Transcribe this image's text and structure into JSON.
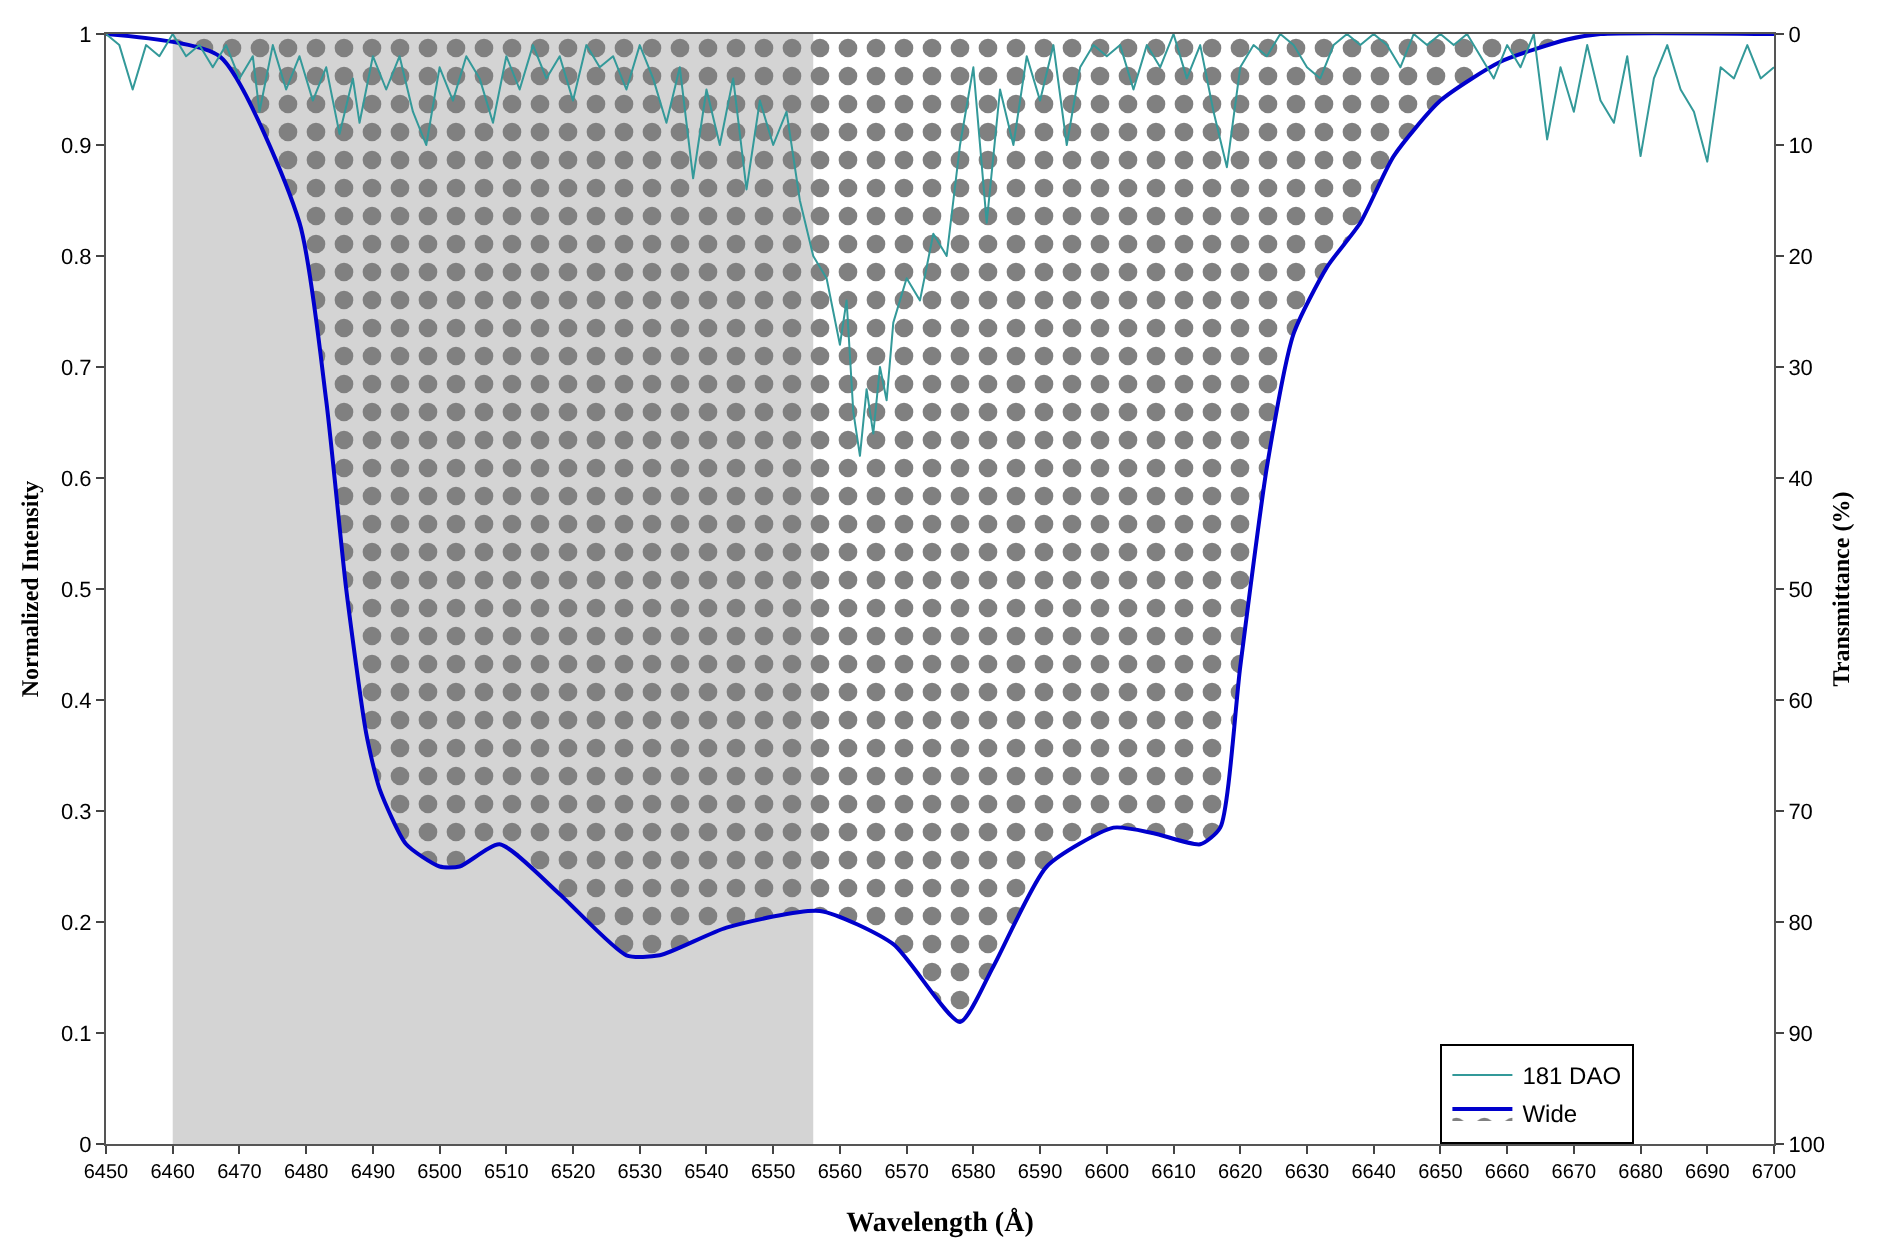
{
  "chart_data": {
    "type": "line",
    "xlabel": "Wavelength (Å)",
    "ylabel": "Normalized Intensity",
    "y2label": "Transmittance (%)",
    "xlim": [
      6450,
      6700
    ],
    "xticks": [
      6450,
      6460,
      6470,
      6480,
      6490,
      6500,
      6510,
      6520,
      6530,
      6540,
      6550,
      6560,
      6570,
      6580,
      6590,
      6600,
      6610,
      6620,
      6630,
      6640,
      6650,
      6660,
      6670,
      6680,
      6690,
      6700
    ],
    "ylim": [
      0,
      1
    ],
    "yticks": [
      0,
      0.1,
      0.2,
      0.3,
      0.4,
      0.5,
      0.6,
      0.7,
      0.8,
      0.9,
      1
    ],
    "y2lim": [
      100,
      0
    ],
    "y2ticks": [
      0,
      10,
      20,
      30,
      40,
      50,
      60,
      70,
      80,
      90,
      100
    ],
    "grid": false,
    "legend": "bottom right",
    "bands": [
      {
        "axis": "x",
        "from": 6460,
        "to": 6556,
        "color": "#d4d4d4"
      }
    ],
    "series": [
      {
        "name": "181 DAO",
        "color": "#339999",
        "x": [
          6450,
          6452,
          6454,
          6456,
          6458,
          6460,
          6462,
          6464,
          6466,
          6468,
          6470,
          6472,
          6473,
          6475,
          6477,
          6479,
          6481,
          6483,
          6485,
          6487,
          6488,
          6490,
          6492,
          6494,
          6496,
          6498,
          6500,
          6502,
          6504,
          6506,
          6508,
          6510,
          6512,
          6514,
          6516,
          6518,
          6520,
          6522,
          6524,
          6526,
          6528,
          6530,
          6532,
          6534,
          6536,
          6538,
          6540,
          6542,
          6544,
          6546,
          6548,
          6550,
          6552,
          6554,
          6556,
          6558,
          6560,
          6561,
          6562,
          6563,
          6564,
          6565,
          6566,
          6567,
          6568,
          6570,
          6572,
          6574,
          6576,
          6578,
          6580,
          6582,
          6584,
          6586,
          6588,
          6590,
          6592,
          6594,
          6596,
          6598,
          6600,
          6602,
          6604,
          6606,
          6608,
          6610,
          6612,
          6614,
          6616,
          6618,
          6620,
          6622,
          6624,
          6626,
          6628,
          6630,
          6632,
          6634,
          6636,
          6638,
          6640,
          6642,
          6644,
          6646,
          6648,
          6650,
          6652,
          6654,
          6656,
          6658,
          6660,
          6662,
          6664,
          6666,
          6668,
          6670,
          6672,
          6674,
          6676,
          6678,
          6680,
          6682,
          6684,
          6686,
          6688,
          6690,
          6692,
          6694,
          6696,
          6698,
          6700
        ],
        "values": [
          1.0,
          0.99,
          0.95,
          0.99,
          0.98,
          1.0,
          0.98,
          0.99,
          0.97,
          0.99,
          0.96,
          0.98,
          0.93,
          0.99,
          0.95,
          0.98,
          0.94,
          0.97,
          0.91,
          0.96,
          0.92,
          0.98,
          0.95,
          0.98,
          0.93,
          0.9,
          0.97,
          0.94,
          0.98,
          0.96,
          0.92,
          0.98,
          0.95,
          0.99,
          0.96,
          0.98,
          0.94,
          0.99,
          0.97,
          0.98,
          0.95,
          0.99,
          0.96,
          0.92,
          0.97,
          0.87,
          0.95,
          0.9,
          0.96,
          0.86,
          0.94,
          0.9,
          0.93,
          0.85,
          0.8,
          0.78,
          0.72,
          0.76,
          0.66,
          0.62,
          0.68,
          0.64,
          0.7,
          0.67,
          0.74,
          0.78,
          0.76,
          0.82,
          0.8,
          0.9,
          0.97,
          0.83,
          0.95,
          0.9,
          0.98,
          0.94,
          0.99,
          0.9,
          0.97,
          0.99,
          0.98,
          0.99,
          0.95,
          0.99,
          0.97,
          1.0,
          0.96,
          0.99,
          0.93,
          0.88,
          0.97,
          0.99,
          0.98,
          1.0,
          0.99,
          0.97,
          0.96,
          0.99,
          1.0,
          0.99,
          1.0,
          0.99,
          0.97,
          1.0,
          0.99,
          1.0,
          0.99,
          1.0,
          0.98,
          0.96,
          0.99,
          0.97,
          1.0,
          0.905,
          0.97,
          0.93,
          0.99,
          0.94,
          0.92,
          0.98,
          0.89,
          0.96,
          0.99,
          0.95,
          0.93,
          0.885,
          0.97,
          0.96,
          0.99,
          0.96,
          0.97
        ]
      },
      {
        "name": "Wide",
        "type": "area",
        "color": "#0000cc",
        "axis": "y2",
        "x": [
          6450,
          6467,
          6479,
          6483,
          6486,
          6489,
          6491,
          6495,
          6500,
          6503,
          6509,
          6518,
          6528,
          6533,
          6543,
          6557,
          6568,
          6578,
          6583,
          6591,
          6601,
          6607,
          6614,
          6617,
          6620,
          6624,
          6628,
          6633,
          6638,
          6643,
          6650,
          6659,
          6669,
          6674,
          6700
        ],
        "values": [
          0,
          2,
          17,
          33,
          50,
          63,
          68,
          73,
          75,
          75,
          73,
          77.5,
          83,
          83,
          80.5,
          79,
          82,
          89,
          84,
          75,
          71.5,
          72,
          73,
          71.5,
          57,
          39,
          27,
          21,
          17,
          11,
          6,
          2.5,
          0.5,
          0,
          0
        ]
      }
    ]
  }
}
